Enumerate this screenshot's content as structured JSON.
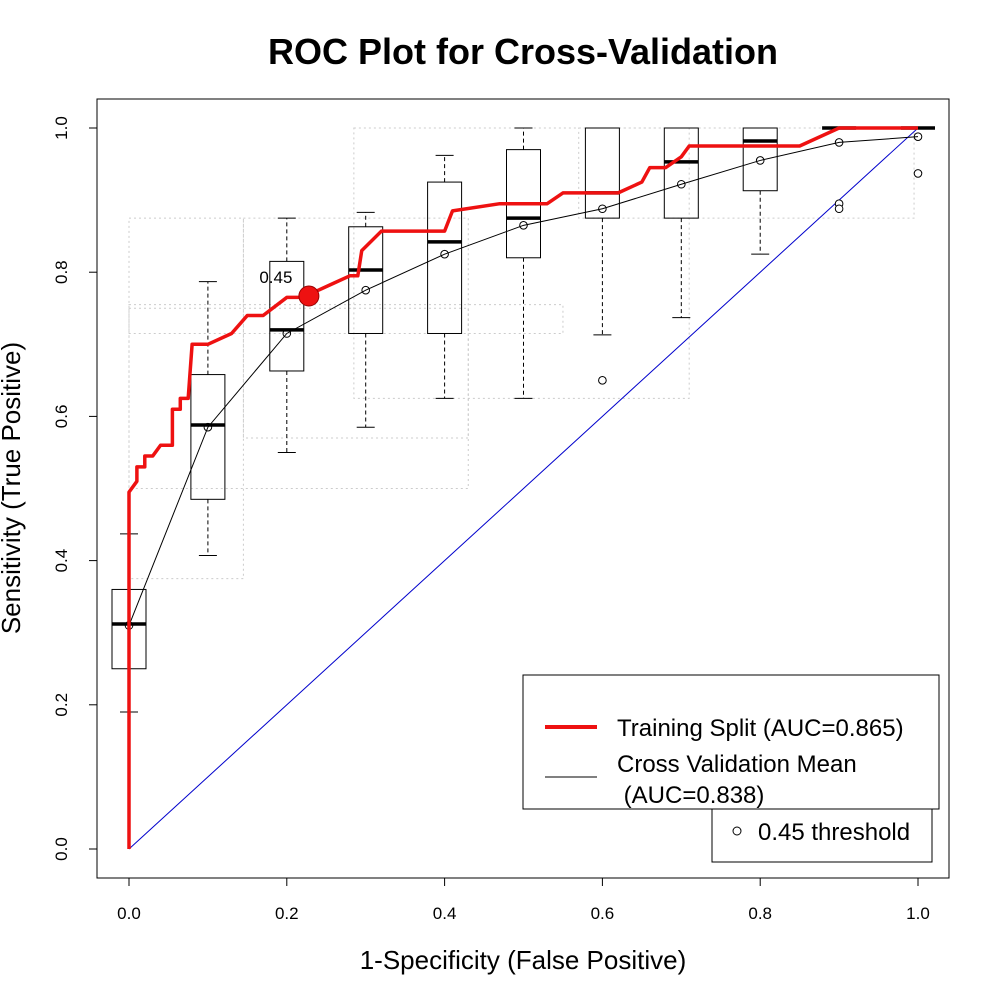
{
  "chart_data": {
    "type": "line",
    "title": "ROC Plot for Cross-Validation",
    "xlabel": "1-Specificity (False Positive)",
    "ylabel": "Sensitivity (True Positive)",
    "xlim": [
      0,
      1
    ],
    "ylim": [
      0,
      1
    ],
    "x_ticks": [
      "0.0",
      "0.2",
      "0.4",
      "0.6",
      "0.8",
      "1.0"
    ],
    "y_ticks": [
      "0.0",
      "0.2",
      "0.4",
      "0.6",
      "0.8",
      "1.0"
    ],
    "grid": false,
    "legend_position": "bottom-right",
    "colors": {
      "training": "#ee1111",
      "cv_mean": "#000000",
      "diagonal": "#0000cc",
      "threshold_ellipse": "#cccccc"
    },
    "series": [
      {
        "name": "Training Split (AUC=0.865)",
        "role": "training",
        "points": [
          [
            0,
            0
          ],
          [
            0,
            0.495
          ],
          [
            0.01,
            0.51
          ],
          [
            0.01,
            0.53
          ],
          [
            0.02,
            0.53
          ],
          [
            0.02,
            0.545
          ],
          [
            0.03,
            0.545
          ],
          [
            0.04,
            0.56
          ],
          [
            0.055,
            0.56
          ],
          [
            0.055,
            0.61
          ],
          [
            0.065,
            0.61
          ],
          [
            0.065,
            0.625
          ],
          [
            0.075,
            0.625
          ],
          [
            0.08,
            0.7
          ],
          [
            0.1,
            0.7
          ],
          [
            0.13,
            0.715
          ],
          [
            0.15,
            0.74
          ],
          [
            0.17,
            0.74
          ],
          [
            0.2,
            0.765
          ],
          [
            0.22,
            0.765
          ],
          [
            0.26,
            0.785
          ],
          [
            0.28,
            0.795
          ],
          [
            0.29,
            0.795
          ],
          [
            0.295,
            0.83
          ],
          [
            0.32,
            0.857
          ],
          [
            0.4,
            0.857
          ],
          [
            0.41,
            0.885
          ],
          [
            0.47,
            0.895
          ],
          [
            0.53,
            0.895
          ],
          [
            0.55,
            0.91
          ],
          [
            0.62,
            0.91
          ],
          [
            0.65,
            0.925
          ],
          [
            0.66,
            0.945
          ],
          [
            0.68,
            0.945
          ],
          [
            0.7,
            0.96
          ],
          [
            0.71,
            0.975
          ],
          [
            0.85,
            0.975
          ],
          [
            0.9,
            1.0
          ],
          [
            1.0,
            1.0
          ]
        ]
      },
      {
        "name": "Cross Validation Mean",
        "name_line2": " (AUC=0.838)",
        "role": "cv_mean",
        "points": [
          [
            0,
            0.31
          ],
          [
            0.1,
            0.585
          ],
          [
            0.2,
            0.715
          ],
          [
            0.3,
            0.775
          ],
          [
            0.4,
            0.825
          ],
          [
            0.5,
            0.865
          ],
          [
            0.6,
            0.888
          ],
          [
            0.7,
            0.922
          ],
          [
            0.8,
            0.955
          ],
          [
            0.9,
            0.98
          ],
          [
            1.0,
            0.988
          ]
        ]
      },
      {
        "name": "0.45 threshold",
        "role": "threshold"
      }
    ],
    "diagonal": [
      [
        0,
        0
      ],
      [
        1,
        1
      ]
    ],
    "threshold_point": {
      "label": "0.45",
      "x": 0.228,
      "y": 0.767
    },
    "boxplots": [
      {
        "x": 0.0,
        "whisker_low": 0.19,
        "q1": 0.25,
        "median": 0.312,
        "q3": 0.36,
        "whisker_high": 0.437,
        "outliers": []
      },
      {
        "x": 0.1,
        "whisker_low": 0.407,
        "q1": 0.485,
        "median": 0.588,
        "q3": 0.658,
        "whisker_high": 0.787,
        "outliers": []
      },
      {
        "x": 0.2,
        "whisker_low": 0.55,
        "q1": 0.663,
        "median": 0.72,
        "q3": 0.815,
        "whisker_high": 0.875,
        "outliers": []
      },
      {
        "x": 0.3,
        "whisker_low": 0.585,
        "q1": 0.715,
        "median": 0.803,
        "q3": 0.863,
        "whisker_high": 0.883,
        "outliers": []
      },
      {
        "x": 0.4,
        "whisker_low": 0.625,
        "q1": 0.715,
        "median": 0.842,
        "q3": 0.925,
        "whisker_high": 0.962,
        "outliers": []
      },
      {
        "x": 0.5,
        "whisker_low": 0.625,
        "q1": 0.82,
        "median": 0.875,
        "q3": 0.97,
        "whisker_high": 1.0,
        "outliers": []
      },
      {
        "x": 0.6,
        "whisker_low": 0.713,
        "q1": 0.875,
        "median": 0.91,
        "q3": 1.0,
        "whisker_high": 1.0,
        "outliers": [
          0.65
        ]
      },
      {
        "x": 0.7,
        "whisker_low": 0.737,
        "q1": 0.875,
        "median": 0.953,
        "q3": 1.0,
        "whisker_high": 1.0,
        "outliers": []
      },
      {
        "x": 0.8,
        "whisker_low": 0.825,
        "q1": 0.913,
        "median": 0.982,
        "q3": 1.0,
        "whisker_high": 1.0,
        "outliers": []
      },
      {
        "x": 0.9,
        "whisker_low": 1.0,
        "q1": 1.0,
        "median": 1.0,
        "q3": 1.0,
        "whisker_high": 1.0,
        "outliers": [
          0.895,
          0.888
        ]
      },
      {
        "x": 1.0,
        "whisker_low": 1.0,
        "q1": 1.0,
        "median": 1.0,
        "q3": 1.0,
        "whisker_high": 1.0,
        "outliers": [
          0.937
        ]
      }
    ],
    "threshold_ranges": [
      {
        "x0": 0.0,
        "x1": 0.145,
        "y0": 0.375,
        "y1": 0.875
      },
      {
        "x0": 0.0,
        "x1": 0.43,
        "y0": 0.5,
        "y1": 0.75
      },
      {
        "x0": 0.0,
        "x1": 0.55,
        "y0": 0.715,
        "y1": 0.755
      },
      {
        "x0": 0.145,
        "x1": 0.43,
        "y0": 0.57,
        "y1": 0.875
      },
      {
        "x0": 0.285,
        "x1": 0.71,
        "y0": 0.625,
        "y1": 1.0
      },
      {
        "x0": 0.57,
        "x1": 0.995,
        "y0": 0.875,
        "y1": 1.0
      }
    ]
  }
}
